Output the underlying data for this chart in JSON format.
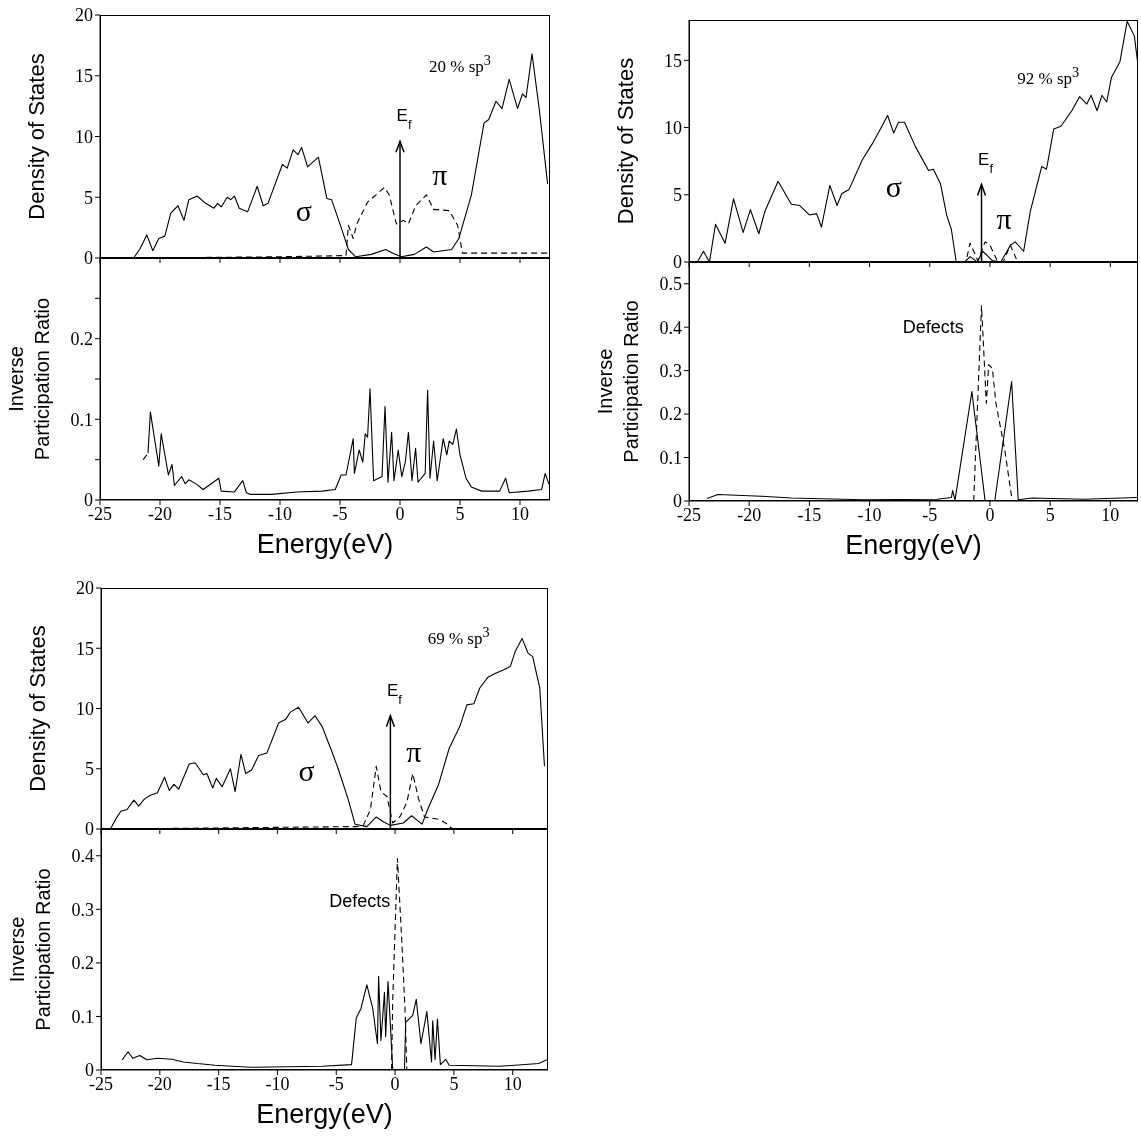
{
  "chart_data": [
    {
      "type": "line",
      "ylabel": "Density of States",
      "xlim": [
        -25,
        12.5
      ],
      "xticks": [
        -25,
        -20,
        -15,
        -10,
        -5,
        0,
        5,
        10
      ],
      "ylim": [
        0,
        20
      ],
      "yticks": [
        0,
        5,
        10,
        15,
        20
      ],
      "tick_labels": "y",
      "series": [
        {
          "color": "#000000",
          "line_style": "solid",
          "x": [
            -22.2,
            -21.7,
            -21.1,
            -20.6,
            -20.1,
            -19.6,
            -19.1,
            -18.5,
            -18.0,
            -17.6,
            -16.9,
            -16.2,
            -15.5,
            -15.2,
            -14.9,
            -14.4,
            -14.1,
            -13.8,
            -13.4,
            -12.7,
            -11.9,
            -11.4,
            -11.0,
            -9.8,
            -9.4,
            -8.9,
            -8.5,
            -8.2,
            -7.7,
            -6.8,
            -6.1,
            -5.7,
            -4.9,
            -4.3,
            -3.7,
            -2.4,
            -1.2,
            -0.6,
            0.1,
            1.2,
            2.2,
            2.8,
            4.3,
            4.9,
            5.95,
            7.0,
            7.4,
            8.0,
            8.5,
            9.1,
            9.8,
            10.2,
            10.5,
            11.0,
            11.6,
            12.3
          ],
          "values": [
            0,
            0.7,
            1.9,
            0.6,
            1.6,
            1.8,
            3.7,
            4.3,
            3.1,
            4.8,
            5.1,
            4.5,
            4.1,
            4.5,
            4.2,
            5.0,
            4.8,
            5.1,
            4.1,
            3.8,
            5.9,
            4.3,
            4.5,
            7.7,
            7.4,
            8.9,
            8.5,
            9.1,
            7.5,
            8.3,
            4.9,
            4.8,
            2.5,
            0.7,
            0.1,
            0.3,
            0.7,
            0.4,
            0.1,
            0.3,
            0.9,
            0.5,
            0.7,
            1.6,
            5.2,
            11.1,
            11.4,
            12.9,
            12.3,
            14.7,
            12.3,
            13.5,
            13.2,
            16.8,
            12.3,
            6.1
          ]
        },
        {
          "color": "#000000",
          "line_style": "dashed",
          "x": [
            -22.0,
            -10.0,
            -4.5,
            -4.3,
            -3.9,
            -3.6,
            -2.7,
            -1.3,
            -0.9,
            -0.3,
            0.3,
            0.7,
            1.3,
            2.2,
            2.8,
            4.1,
            4.8,
            5.2,
            12.3
          ],
          "values": [
            0,
            0.1,
            0.2,
            2.7,
            1.6,
            2.8,
            4.6,
            5.8,
            5.2,
            2.8,
            3.1,
            2.8,
            4.3,
            5.2,
            4.0,
            3.9,
            2.7,
            0.4,
            0.4
          ]
        }
      ],
      "annotations": [
        "20 % sp$^{3}$",
        "σ",
        "π"
      ],
      "ref_lines": [
        {
          "axis": "x",
          "value": 0,
          "label": "E$_{f}$"
        }
      ]
    },
    {
      "type": "line",
      "xlabel": "Energy(eV)",
      "ylabel": "Inverse Participation Ratio",
      "xlim": [
        -25,
        12.5
      ],
      "xticks": [
        -25,
        -20,
        -15,
        -10,
        -5,
        0,
        5,
        10
      ],
      "ylim": [
        0,
        0.3
      ],
      "yticks": [
        0,
        {
          "value": 0.05,
          "label": null
        },
        0.1,
        {
          "value": 0.15,
          "label": null
        },
        0.2,
        {
          "value": 0.25,
          "label": null
        }
      ],
      "series": [
        {
          "color": "#000000",
          "line_style": "solid",
          "x": [
            -21.0,
            -20.8,
            -20.1,
            -19.9,
            -19.3,
            -19.0,
            -18.8,
            -18.2,
            -17.9,
            -17.6,
            -17.0,
            -16.4,
            -15.1,
            -14.9,
            -13.8,
            -13.1,
            -12.8,
            -12.5,
            -10.7,
            -8.6,
            -6.5,
            -5.4,
            -4.9,
            -4.5,
            -3.9,
            -3.8,
            -3.4,
            -3.1,
            -2.9,
            -2.7,
            -2.5,
            -2.2,
            -1.5,
            -1.25,
            -1.0,
            -0.7,
            -0.5,
            -0.15,
            0.15,
            0.45,
            0.7,
            1.0,
            1.3,
            1.5,
            2.1,
            2.3,
            2.5,
            2.8,
            3.1,
            3.6,
            3.9,
            4.1,
            4.4,
            4.7,
            5.0,
            5.5,
            5.95,
            6.8,
            8.3,
            8.8,
            9.1,
            10.7,
            11.8,
            12.1,
            12.4
          ],
          "values": [
            0.058,
            0.109,
            0.042,
            0.082,
            0.031,
            0.044,
            0.018,
            0.029,
            0.02,
            0.025,
            0.02,
            0.013,
            0.027,
            0.011,
            0.01,
            0.024,
            0.009,
            0.007,
            0.007,
            0.01,
            0.011,
            0.013,
            0.031,
            0.031,
            0.076,
            0.033,
            0.062,
            0.047,
            0.082,
            0.078,
            0.138,
            0.024,
            0.029,
            0.116,
            0.022,
            0.084,
            0.024,
            0.062,
            0.029,
            0.048,
            0.084,
            0.024,
            0.064,
            0.022,
            0.033,
            0.136,
            0.027,
            0.073,
            0.024,
            0.076,
            0.056,
            0.073,
            0.069,
            0.088,
            0.056,
            0.027,
            0.016,
            0.011,
            0.011,
            0.027,
            0.009,
            0.011,
            0.013,
            0.033,
            0.02
          ]
        },
        {
          "color": "#000000",
          "line_style": "dashed",
          "x": [
            -21.4,
            -21.0
          ],
          "values": [
            0.05,
            0.058
          ]
        }
      ]
    },
    {
      "type": "line",
      "ylabel": "Density of States",
      "xlim": [
        -25,
        12.3
      ],
      "xticks": [
        -25,
        -20,
        -15,
        -10,
        -5,
        0,
        5,
        10
      ],
      "ylim": [
        0,
        18
      ],
      "yticks": [
        0,
        5,
        10,
        15
      ],
      "tick_labels": "y",
      "series": [
        {
          "color": "#000000",
          "line_style": "solid",
          "x": [
            -24.3,
            -23.8,
            -23.3,
            -22.8,
            -22.0,
            -21.3,
            -20.5,
            -19.9,
            -19.2,
            -18.7,
            -17.6,
            -16.5,
            -15.8,
            -15.0,
            -14.4,
            -14.0,
            -13.3,
            -12.7,
            -12.3,
            -11.7,
            -10.6,
            -9.7,
            -9.1,
            -8.5,
            -8.0,
            -7.6,
            -7.1,
            -6.2,
            -5.1,
            -4.7,
            -4.1,
            -3.6,
            -3.2,
            -2.8,
            -2.1,
            -1.65,
            -1.05,
            -0.6,
            0.2,
            0.9,
            1.7,
            2.1,
            2.8,
            3.35,
            4.3,
            4.7,
            5.3,
            5.9,
            6.8,
            7.45,
            8.05,
            8.4,
            8.9,
            9.3,
            9.7,
            10.1,
            10.8,
            11.4,
            12.0,
            12.25
          ],
          "values": [
            0,
            0.8,
            0,
            2.8,
            1.4,
            4.7,
            2.2,
            3.9,
            2.1,
            3.75,
            6.0,
            4.3,
            4.2,
            3.5,
            3.6,
            2.6,
            5.7,
            4.2,
            5.1,
            5.4,
            7.6,
            8.9,
            9.9,
            10.9,
            9.6,
            10.4,
            10.4,
            8.6,
            6.8,
            6.9,
            5.8,
            3.5,
            2.4,
            0,
            0,
            0.4,
            0,
            0.8,
            0.1,
            0,
            1.25,
            1.5,
            0.8,
            3.75,
            7.1,
            6.9,
            9.9,
            10.1,
            11.25,
            12.3,
            11.75,
            12.4,
            11.25,
            12.4,
            11.9,
            13.75,
            14.9,
            17.9,
            16.8,
            15.0
          ]
        },
        {
          "color": "#000000",
          "line_style": "dashed",
          "x": [
            -24.0,
            -2.0,
            -1.65,
            -1.0,
            -0.4,
            0.0,
            0.6,
            1.1,
            1.7,
            2.3,
            12.2
          ],
          "values": [
            0,
            0,
            1.4,
            0.1,
            1.5,
            1.25,
            0.1,
            0,
            1.25,
            0,
            0
          ]
        }
      ],
      "annotations": [
        "92 % sp$^{3}$",
        "σ",
        "π"
      ],
      "ref_lines": [
        {
          "axis": "x",
          "value": -0.7,
          "label": "E$_{f}$"
        }
      ]
    },
    {
      "type": "line",
      "xlabel": "Energy(eV)",
      "ylabel": "Inverse Participation Ratio",
      "xlim": [
        -25,
        12.3
      ],
      "xticks": [
        -25,
        -20,
        -15,
        -10,
        -5,
        0,
        5,
        10
      ],
      "ylim": [
        0,
        0.55
      ],
      "yticks": [
        0,
        0.1,
        0.2,
        0.3,
        0.4,
        0.5
      ],
      "series": [
        {
          "color": "#000000",
          "line_style": "solid",
          "x": [
            -23.5,
            -22.6,
            -19.0,
            -16.5,
            -10.5,
            -4.4,
            -3.2,
            -3.1,
            -2.9,
            -1.5,
            -0.4,
            0.4,
            1.8,
            2.35,
            3.5,
            7.8,
            12.2
          ],
          "values": [
            0.006,
            0.015,
            0.011,
            0.007,
            0.003,
            0.004,
            0.008,
            0.024,
            0.002,
            0.252,
            0,
            0,
            0.275,
            0.003,
            0.007,
            0.004,
            0.008
          ]
        },
        {
          "color": "#000000",
          "line_style": "dashed",
          "x": [
            -1.35,
            -0.7,
            -0.3,
            -0.1,
            0.2,
            0.5,
            1.25,
            1.85
          ],
          "values": [
            0,
            0.449,
            0.225,
            0.314,
            0.305,
            0.225,
            0.114,
            0
          ]
        }
      ],
      "annotations": [
        "Defects"
      ]
    },
    {
      "type": "line",
      "ylabel": "Density of States",
      "xlim": [
        -25,
        13
      ],
      "xticks": [
        -25,
        -20,
        -15,
        -10,
        -5,
        0,
        5,
        10
      ],
      "ylim": [
        0,
        20
      ],
      "yticks": [
        0,
        5,
        10,
        15,
        20
      ],
      "tick_labels": "y",
      "series": [
        {
          "color": "#000000",
          "line_style": "solid",
          "x": [
            -24.2,
            -23.7,
            -23.3,
            -22.8,
            -22.2,
            -21.8,
            -21.3,
            -20.8,
            -20.2,
            -19.6,
            -19.2,
            -18.8,
            -18.4,
            -17.5,
            -17.0,
            -16.3,
            -16.0,
            -15.5,
            -15.2,
            -14.7,
            -14.0,
            -13.6,
            -13.1,
            -12.7,
            -12.2,
            -11.6,
            -10.9,
            -9.9,
            -9.3,
            -8.9,
            -8.2,
            -7.4,
            -6.8,
            -6.2,
            -5.4,
            -4.8,
            -4.0,
            -3.4,
            -2.4,
            -1.6,
            -1.0,
            -0.4,
            0.7,
            1.4,
            2.3,
            2.8,
            3.7,
            4.6,
            5.5,
            6.1,
            6.7,
            7.2,
            7.9,
            8.5,
            9.2,
            9.8,
            10.2,
            10.8,
            11.3,
            11.7,
            12.3,
            12.7
          ],
          "values": [
            0,
            0.9,
            1.5,
            1.6,
            2.4,
            1.9,
            2.5,
            2.8,
            3.0,
            4.3,
            3.2,
            3.7,
            3.3,
            5.4,
            5.5,
            4.5,
            4.6,
            3.4,
            4.2,
            3.5,
            5.0,
            3.1,
            6.2,
            4.6,
            4.9,
            6.1,
            6.3,
            8.8,
            9.1,
            9.7,
            10.1,
            8.8,
            9.4,
            8.5,
            6.5,
            4.9,
            2.5,
            0.4,
            0.2,
            1.0,
            0.6,
            0.3,
            0.5,
            1.1,
            0.4,
            1.7,
            3.7,
            6.7,
            8.5,
            10.3,
            10.4,
            11.7,
            12.6,
            12.9,
            13.2,
            13.5,
            14.7,
            15.8,
            14.6,
            14.3,
            11.7,
            5.2
          ]
        },
        {
          "color": "#000000",
          "line_style": "dashed",
          "x": [
            -24.0,
            -3.3,
            -2.7,
            -2.1,
            -1.6,
            -1.2,
            -0.7,
            -0.2,
            0.4,
            1.0,
            1.5,
            2.0,
            2.5,
            3.7,
            4.3,
            4.9,
            12.7
          ],
          "values": [
            0,
            0.2,
            0.3,
            1.6,
            5.2,
            3.1,
            2.7,
            0.5,
            1.0,
            2.2,
            4.6,
            2.5,
            1.0,
            0.8,
            0.5,
            0,
            0
          ]
        }
      ],
      "annotations": [
        "69 % sp$^{3}$",
        "σ",
        "π"
      ],
      "ref_lines": [
        {
          "axis": "x",
          "value": -0.4,
          "label": "E$_{f}$"
        }
      ]
    },
    {
      "type": "line",
      "xlabel": "Energy(eV)",
      "ylabel": "Inverse Participation Ratio",
      "xlim": [
        -25,
        13
      ],
      "xticks": [
        -25,
        -20,
        -15,
        -10,
        -5,
        0,
        5,
        10
      ],
      "ylim": [
        0,
        0.45
      ],
      "yticks": [
        0,
        0.1,
        0.2,
        0.3,
        0.4
      ],
      "series": [
        {
          "color": "#000000",
          "line_style": "solid",
          "x": [
            -23.2,
            -22.7,
            -22.3,
            -21.7,
            -21.1,
            -20.2,
            -19.0,
            -18.0,
            -16.8,
            -15.3,
            -13.8,
            -12.3,
            -6.2,
            -3.7,
            -3.3,
            -2.9,
            -2.4,
            -1.9,
            -1.5,
            -1.4,
            -1.2,
            -0.9,
            -0.8,
            -0.6,
            -0.4,
            -0.2,
            0.8,
            0.9,
            1.5,
            1.8,
            2.2,
            2.7,
            3.1,
            3.2,
            3.4,
            3.6,
            3.85,
            4.3,
            4.6,
            8.9,
            12.2,
            12.9
          ],
          "values": [
            0.019,
            0.034,
            0.022,
            0.027,
            0.019,
            0.022,
            0.02,
            0.015,
            0.012,
            0.009,
            0.007,
            0.005,
            0.007,
            0.01,
            0.097,
            0.115,
            0.159,
            0.115,
            0.049,
            0.175,
            0.055,
            0.145,
            0.062,
            0.165,
            0.085,
            0,
            0,
            0.089,
            0.102,
            0.132,
            0.049,
            0.109,
            0.015,
            0.092,
            0.019,
            0.095,
            0.01,
            0.02,
            0.009,
            0.007,
            0.012,
            0.019
          ]
        },
        {
          "color": "#000000",
          "line_style": "dashed",
          "x": [
            -0.3,
            -0.2,
            0.2,
            0.55,
            0.85,
            1.0
          ],
          "values": [
            0,
            0.13,
            0.395,
            0.25,
            0.11,
            0
          ]
        }
      ],
      "annotations": [
        "Defects"
      ]
    }
  ]
}
